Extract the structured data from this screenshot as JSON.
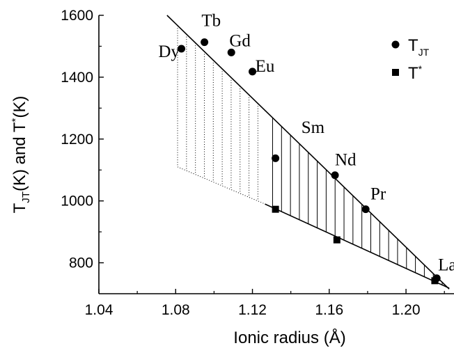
{
  "chart_data": {
    "type": "scatter",
    "xlabel": "Ionic radius (Å)",
    "ylabel_parts": {
      "t1": "T",
      "s1": "JT",
      "t2": "(K) and T",
      "s2": "*",
      "t3": "(K)"
    },
    "xlim": [
      1.04,
      1.225
    ],
    "ylim": [
      700,
      1600
    ],
    "xticks": [
      1.04,
      1.08,
      1.12,
      1.16,
      1.2
    ],
    "xtick_labels": [
      "1.04",
      "1.08",
      "1.12",
      "1.16",
      "1.20"
    ],
    "yticks": [
      800,
      1000,
      1200,
      1400,
      1600
    ],
    "ytick_labels": [
      "800",
      "1000",
      "1200",
      "1400",
      "1600"
    ],
    "legend": {
      "placement": "top-right",
      "entries": [
        {
          "marker": "circle",
          "base": "T",
          "sup": "",
          "sub": "JT"
        },
        {
          "marker": "square",
          "base": "T",
          "sup": "*",
          "sub": ""
        }
      ]
    },
    "series": [
      {
        "marker": "circle",
        "points": [
          {
            "x": 1.083,
            "y": 1492
          },
          {
            "x": 1.095,
            "y": 1513
          },
          {
            "x": 1.109,
            "y": 1480
          },
          {
            "x": 1.12,
            "y": 1418
          },
          {
            "x": 1.132,
            "y": 1138
          },
          {
            "x": 1.163,
            "y": 1083
          },
          {
            "x": 1.179,
            "y": 973
          },
          {
            "x": 1.216,
            "y": 750
          }
        ]
      },
      {
        "marker": "square",
        "points": [
          {
            "x": 1.132,
            "y": 973
          },
          {
            "x": 1.164,
            "y": 874
          },
          {
            "x": 1.215,
            "y": 742
          }
        ]
      }
    ],
    "element_labels": [
      {
        "text": "Dy",
        "x": 1.0765,
        "y": 1465
      },
      {
        "text": "Tb",
        "x": 1.0985,
        "y": 1565
      },
      {
        "text": "Gd",
        "x": 1.1135,
        "y": 1500
      },
      {
        "text": "Eu",
        "x": 1.1265,
        "y": 1418
      },
      {
        "text": "Sm",
        "x": 1.1515,
        "y": 1220
      },
      {
        "text": "Nd",
        "x": 1.1685,
        "y": 1115
      },
      {
        "text": "Pr",
        "x": 1.1855,
        "y": 1005
      },
      {
        "text": "La",
        "x": 1.2215,
        "y": 775
      }
    ],
    "upper_line": {
      "x": [
        1.0755,
        1.2225
      ],
      "y": [
        1600,
        715
      ]
    },
    "lower_line": {
      "x": [
        1.1265,
        1.2225
      ],
      "y": [
        990,
        718
      ]
    },
    "dotted_boundary": {
      "x": [
        1.081,
        1.1265
      ],
      "y": [
        1110,
        990
      ]
    },
    "hatch": {
      "dotted_x_range": [
        1.081,
        1.1265
      ],
      "solid_x_range": [
        1.1305,
        1.2195
      ],
      "spacing": 0.00465
    }
  }
}
